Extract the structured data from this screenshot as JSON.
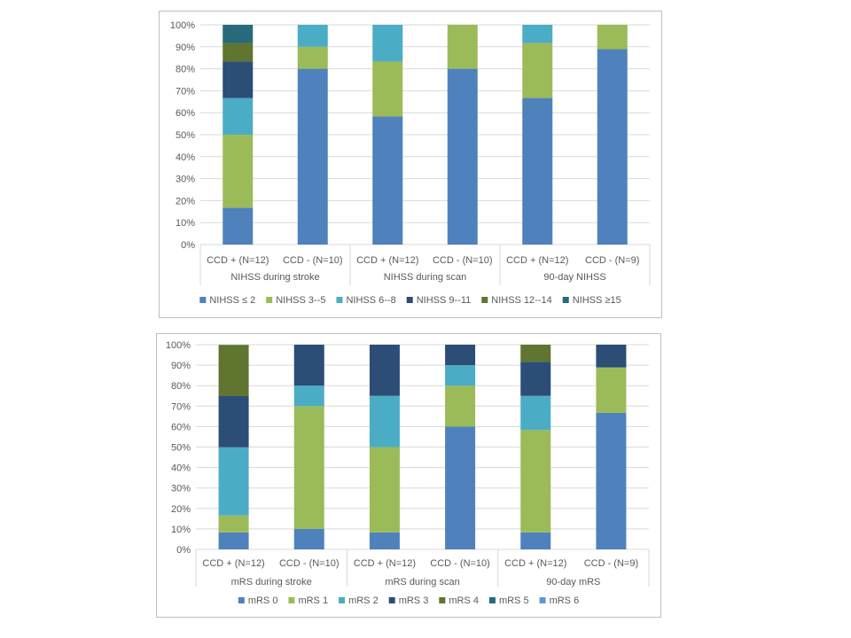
{
  "chart_data": [
    {
      "type": "bar",
      "stacked": true,
      "title": "",
      "xlabel": "",
      "ylabel": "",
      "ylim": [
        0,
        100
      ],
      "y_ticks": [
        "0%",
        "10%",
        "20%",
        "30%",
        "40%",
        "50%",
        "60%",
        "70%",
        "80%",
        "90%",
        "100%"
      ],
      "grid": true,
      "legend_position": "bottom",
      "categories": [
        "CCD + (N=12)",
        "CCD - (N=10)",
        "CCD + (N=12)",
        "CCD - (N=10)",
        "CCD + (N=12)",
        "CCD - (N=9)"
      ],
      "groups": [
        {
          "label": "NIHSS during stroke",
          "span": 2
        },
        {
          "label": "NIHSS during scan",
          "span": 2
        },
        {
          "label": "90-day NIHSS",
          "span": 2
        }
      ],
      "series": [
        {
          "name": "NIHSS ≤ 2",
          "color": "#4F81BD",
          "values": [
            16.7,
            80,
            58.3,
            80,
            66.7,
            88.9
          ]
        },
        {
          "name": "NIHSS 3--5",
          "color": "#9BBB59",
          "values": [
            33.3,
            10,
            25,
            20,
            25,
            11.1
          ]
        },
        {
          "name": "NIHSS 6--8",
          "color": "#4BACC6",
          "values": [
            16.7,
            10,
            16.7,
            0,
            8.3,
            0
          ]
        },
        {
          "name": "NIHSS 9--11",
          "color": "#2C4D75",
          "values": [
            16.7,
            0,
            0,
            0,
            0,
            0
          ]
        },
        {
          "name": "NIHSS 12--14",
          "color": "#5F7530",
          "values": [
            8.3,
            0,
            0,
            0,
            0,
            0
          ]
        },
        {
          "name": "NIHSS ≥15",
          "color": "#276A7C",
          "values": [
            8.3,
            0,
            0,
            0,
            0,
            0
          ]
        }
      ]
    },
    {
      "type": "bar",
      "stacked": true,
      "title": "",
      "xlabel": "",
      "ylabel": "",
      "ylim": [
        0,
        100
      ],
      "y_ticks": [
        "0%",
        "10%",
        "20%",
        "30%",
        "40%",
        "50%",
        "60%",
        "70%",
        "80%",
        "90%",
        "100%"
      ],
      "grid": true,
      "legend_position": "bottom",
      "categories": [
        "CCD + (N=12)",
        "CCD - (N=10)",
        "CCD + (N=12)",
        "CCD - (N=10)",
        "CCD + (N=12)",
        "CCD - (N=9)"
      ],
      "groups": [
        {
          "label": "mRS during stroke",
          "span": 2
        },
        {
          "label": "mRS during scan",
          "span": 2
        },
        {
          "label": "90-day mRS",
          "span": 2
        }
      ],
      "series": [
        {
          "name": "mRS 0",
          "color": "#4F81BD",
          "values": [
            8.3,
            10,
            8.3,
            60,
            8.3,
            66.7
          ]
        },
        {
          "name": "mRS 1",
          "color": "#9BBB59",
          "values": [
            8.3,
            60,
            41.7,
            20,
            50,
            22.2
          ]
        },
        {
          "name": "mRS 2",
          "color": "#4BACC6",
          "values": [
            33.3,
            10,
            25,
            10,
            16.7,
            0
          ]
        },
        {
          "name": "mRS 3",
          "color": "#2C4D75",
          "values": [
            25,
            20,
            25,
            10,
            16.7,
            11.1
          ]
        },
        {
          "name": "mRS 4",
          "color": "#5F7530",
          "values": [
            25,
            0,
            0,
            0,
            8.3,
            0
          ]
        },
        {
          "name": "mRS 5",
          "color": "#276A7C",
          "values": [
            0,
            0,
            0,
            0,
            0,
            0
          ]
        },
        {
          "name": "mRS 6",
          "color": "#5B9BD5",
          "values": [
            0,
            0,
            0,
            0,
            0,
            0
          ]
        }
      ]
    }
  ]
}
